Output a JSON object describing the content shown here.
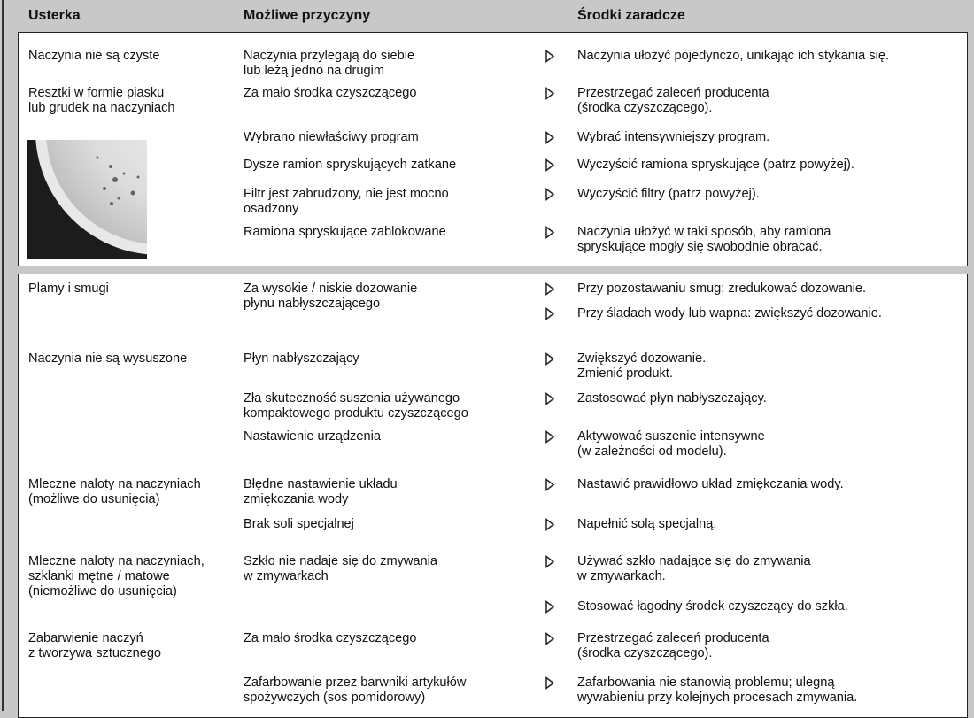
{
  "header": {
    "fault": "Usterka",
    "cause": "Możliwe przyczyny",
    "remedy": "Środki zaradcze"
  },
  "sections": [
    {
      "rows": [
        {
          "fault": "Naczynia nie są czyste",
          "cause": "Naczynia przylegają do siebie\nlub leżą jedno na drugim",
          "remedies": [
            "Naczynia ułożyć pojedynczo, unikając ich stykania się."
          ]
        },
        {
          "fault": "Resztki w formie piasku\nlub grudek na naczyniach",
          "cause": "Za mało środka czyszczącego",
          "remedies": [
            "Przestrzegać zaleceń producenta\n(środka czyszczącego)."
          ]
        },
        {
          "cause": "Wybrano niewłaściwy program",
          "remedies": [
            "Wybrać intensywniejszy program."
          ]
        },
        {
          "cause": "Dysze ramion spryskujących zatkane",
          "remedies": [
            "Wyczyścić ramiona spryskujące (patrz powyżej)."
          ]
        },
        {
          "cause": "Filtr jest zabrudzony, nie jest mocno\nosadzony",
          "remedies": [
            "Wyczyścić filtry (patrz powyżej)."
          ]
        },
        {
          "cause": "Ramiona spryskujące zablokowane",
          "remedies": [
            "Naczynia ułożyć w taki sposób, aby ramiona\nspryskujące mogły się swobodnie obracać."
          ]
        }
      ]
    },
    {
      "rows": [
        {
          "fault": "Plamy i smugi",
          "cause": "Za wysokie / niskie dozowanie\npłynu nabłyszczającego",
          "remedies": [
            "Przy pozostawaniu smug: zredukować dozowanie.",
            "Przy śladach wody lub wapna: zwiększyć dozowanie."
          ]
        },
        {
          "fault": "Naczynia nie są wysuszone",
          "cause": "Płyn nabłyszczający",
          "remedies": [
            "Zwiększyć dozowanie.\nZmienić produkt."
          ]
        },
        {
          "cause": "Zła skuteczność suszenia używanego\nkompaktowego produktu czyszczącego",
          "remedies": [
            "Zastosować płyn nabłyszczający."
          ]
        },
        {
          "cause": "Nastawienie urządzenia",
          "remedies": [
            "Aktywować suszenie intensywne\n(w zależności od modelu)."
          ]
        },
        {
          "fault": "Mleczne naloty na naczyniach\n(możliwe do usunięcia)",
          "cause": "Błędne nastawienie układu\nzmiękczania wody",
          "remedies": [
            "Nastawić prawidłowo układ zmiękczania wody."
          ]
        },
        {
          "cause": "Brak soli specjalnej",
          "remedies": [
            "Napełnić solą specjalną."
          ]
        },
        {
          "fault": "Mleczne naloty na naczyniach,\nszklanki mętne / matowe\n(niemożliwe do usunięcia)",
          "cause": "Szkło nie nadaje się do zmywania\nw zmywarkach",
          "remedies": [
            "Używać szkło nadające się do zmywania\nw zmywarkach.",
            "Stosować łagodny środek czyszczący do szkła."
          ]
        },
        {
          "fault": "Zabarwienie naczyń\nz tworzywa sztucznego",
          "cause": "Za mało środka czyszczącego",
          "remedies": [
            "Przestrzegać zaleceń producenta\n(środka czyszczącego)."
          ]
        },
        {
          "cause": "Zafarbowanie przez barwniki artykułów\nspożywczych (sos pomidorowy)",
          "remedies": [
            "Zafarbowania nie stanowią problemu; ulegną\nwywabieniu przy kolejnych procesach zmywania."
          ]
        }
      ]
    }
  ]
}
